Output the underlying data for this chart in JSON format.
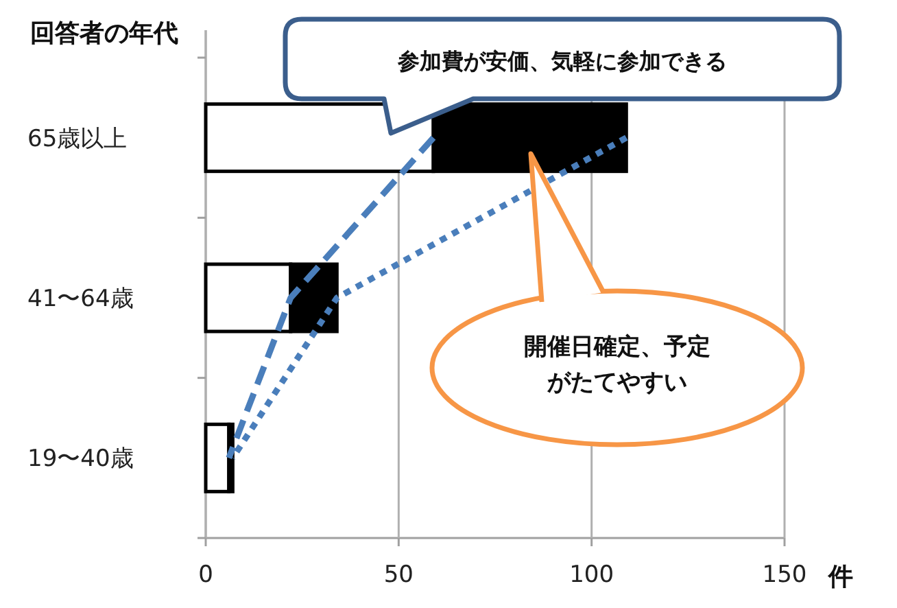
{
  "chart_data": {
    "type": "bar",
    "orientation": "horizontal",
    "stacked": true,
    "ylabel": "回答者の年代",
    "xlabel": "件",
    "categories": [
      "65歳以上",
      "41〜64歳",
      "19〜40歳"
    ],
    "series": [
      {
        "color": "#ffffff",
        "values": [
          59,
          22,
          6
        ]
      },
      {
        "color": "#000000",
        "values": [
          50,
          12,
          1
        ]
      },
      {
        "type": "line",
        "color": "#4a7ebb",
        "line_style": "dashed",
        "values": [
          59,
          22,
          6
        ]
      },
      {
        "type": "line",
        "color": "#4a7ebb",
        "line_style": "dotted",
        "values": [
          109,
          34,
          7
        ]
      }
    ],
    "xlim": [
      0,
      150
    ],
    "xticks": [
      0,
      50,
      100,
      150
    ],
    "grid": "x",
    "annotations": [
      "参加費が安価、気軽に参加できる",
      "開催日確定、予定がたてやすい"
    ]
  }
}
